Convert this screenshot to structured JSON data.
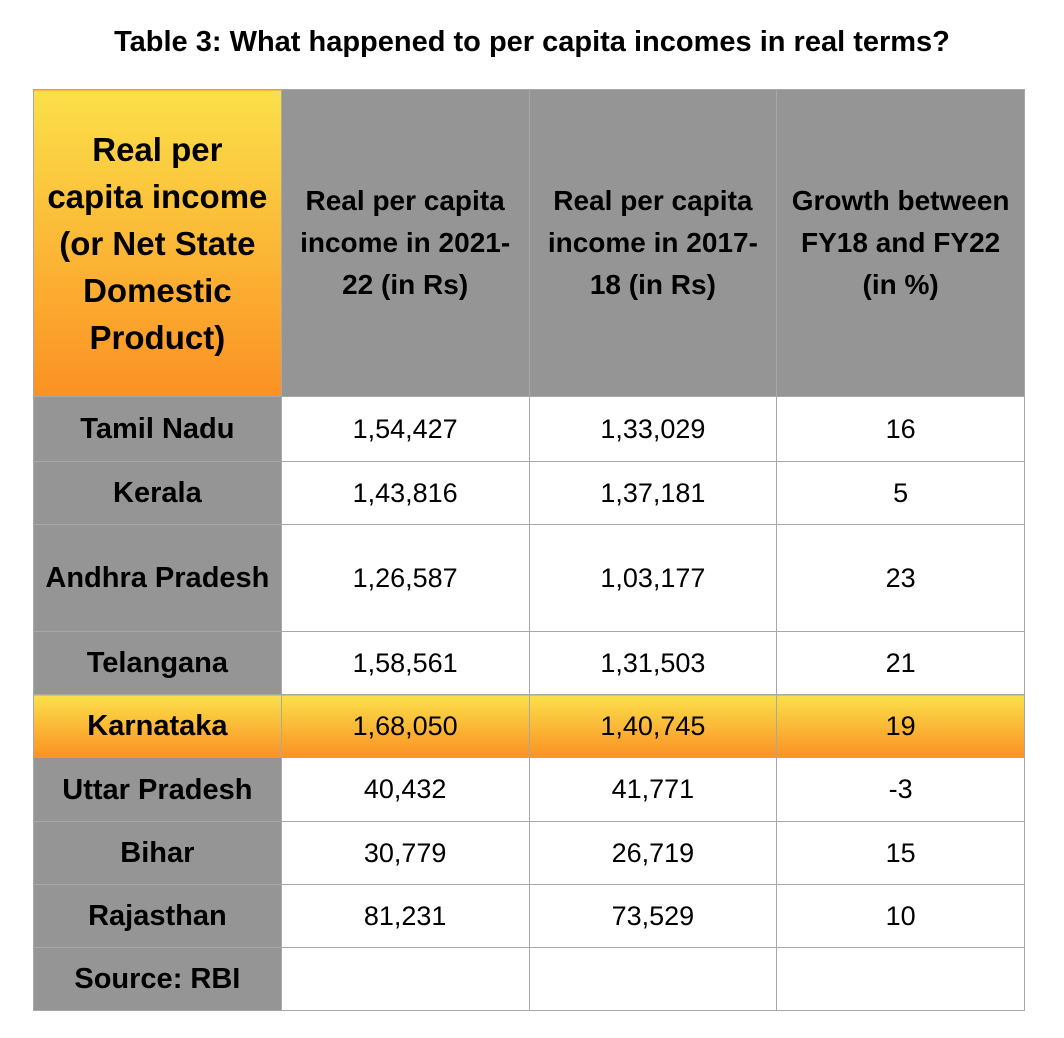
{
  "title": "Table 3: What happened to per capita incomes in real terms?",
  "colors": {
    "header_gray": "#959595",
    "highlight_top": "#fbe04a",
    "highlight_bottom": "#fb9123"
  },
  "chart_data": {
    "type": "table",
    "title": "Table 3: What happened to per capita incomes in real terms?",
    "columns": [
      "Real per capita income (or Net State Domestic Product)",
      "Real per capita income in 2021-22 (in Rs)",
      "Real per capita income in 2017-18 (in Rs)",
      "Growth between FY18 and FY22 (in %)"
    ],
    "rows": [
      {
        "state": "Tamil Nadu",
        "fy22": "1,54,427",
        "fy18": "1,33,029",
        "growth": "16"
      },
      {
        "state": "Kerala",
        "fy22": "1,43,816",
        "fy18": "1,37,181",
        "growth": "5"
      },
      {
        "state": "Andhra Pradesh",
        "fy22": "1,26,587",
        "fy18": "1,03,177",
        "growth": "23"
      },
      {
        "state": "Telangana",
        "fy22": "1,58,561",
        "fy18": "1,31,503",
        "growth": "21"
      },
      {
        "state": "Karnataka",
        "fy22": "1,68,050",
        "fy18": "1,40,745",
        "growth": "19",
        "highlighted": true
      },
      {
        "state": "Uttar Pradesh",
        "fy22": "40,432",
        "fy18": "41,771",
        "growth": "-3"
      },
      {
        "state": "Bihar",
        "fy22": "30,779",
        "fy18": "26,719",
        "growth": "15"
      },
      {
        "state": "Rajasthan",
        "fy22": "81,231",
        "fy18": "73,529",
        "growth": "10"
      }
    ],
    "source": "Source: RBI"
  }
}
